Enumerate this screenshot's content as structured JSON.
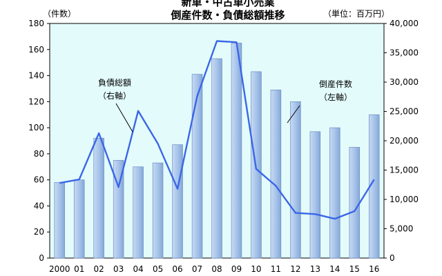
{
  "chart_data": {
    "type": "bar",
    "title_top": "新車・中古車小売業",
    "title": "倒産件数・負債総額推移",
    "left_unit": "（件数）",
    "right_unit": "（単位：百万円）",
    "categories": [
      "2000",
      "01",
      "02",
      "03",
      "04",
      "05",
      "06",
      "07",
      "08",
      "09",
      "10",
      "11",
      "12",
      "13",
      "14",
      "15",
      "16"
    ],
    "series": [
      {
        "name": "倒産件数",
        "axis": "left",
        "kind": "bar",
        "color": "#9dbbe3",
        "values": [
          58,
          60,
          92,
          75,
          70,
          73,
          87,
          141,
          153,
          165,
          143,
          129,
          120,
          97,
          100,
          85,
          110
        ]
      },
      {
        "name": "負債総額",
        "axis": "right",
        "kind": "line",
        "color": "#3a66e8",
        "values": [
          12800,
          13400,
          21300,
          12100,
          25100,
          19500,
          11800,
          27600,
          37000,
          36800,
          15200,
          12300,
          7700,
          7500,
          6700,
          8000,
          13400
        ]
      }
    ],
    "left_axis": {
      "ylim": [
        0,
        180
      ],
      "ticks": [
        "0",
        "20",
        "40",
        "60",
        "80",
        "100",
        "120",
        "140",
        "160",
        "180"
      ]
    },
    "right_axis": {
      "ylim": [
        0,
        40000
      ],
      "ticks": [
        "0",
        "5,000",
        "10,000",
        "15,000",
        "20,000",
        "25,000",
        "30,000",
        "35,000",
        "40,000"
      ]
    },
    "annotations": [
      {
        "target": "負債総額",
        "lines": [
          "負債総額",
          "（右軸）"
        ]
      },
      {
        "target": "倒産件数",
        "lines": [
          "倒産件数",
          "（左軸）"
        ]
      }
    ],
    "plot_bg": "#e3fbfb",
    "grid": false
  }
}
